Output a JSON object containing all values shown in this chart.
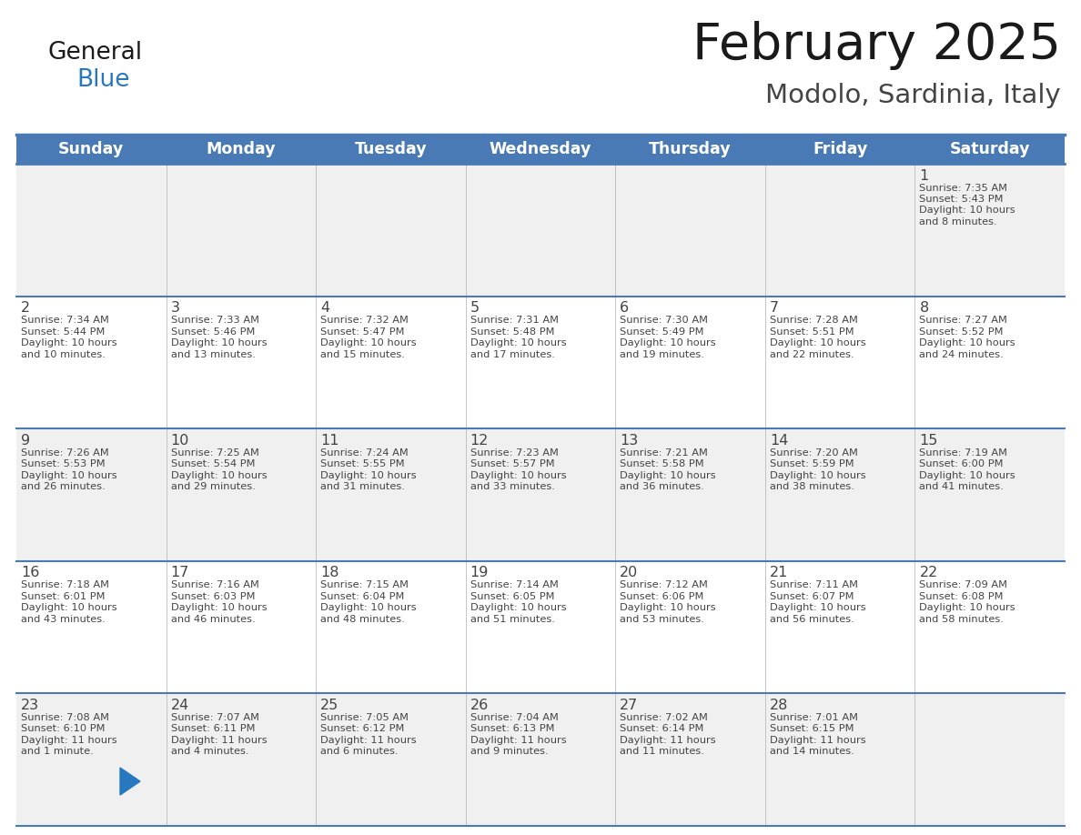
{
  "title": "February 2025",
  "subtitle": "Modolo, Sardinia, Italy",
  "header_bg": "#4a7ab5",
  "header_text_color": "#ffffff",
  "cell_bg_odd": "#f0f0f0",
  "cell_bg_even": "#ffffff",
  "border_color": "#4a7ab5",
  "text_color": "#444444",
  "day_headers": [
    "Sunday",
    "Monday",
    "Tuesday",
    "Wednesday",
    "Thursday",
    "Friday",
    "Saturday"
  ],
  "days": [
    {
      "day": 1,
      "col": 6,
      "row": 0,
      "sunrise": "7:35 AM",
      "sunset": "5:43 PM",
      "daylight": "10 hours and 8 minutes."
    },
    {
      "day": 2,
      "col": 0,
      "row": 1,
      "sunrise": "7:34 AM",
      "sunset": "5:44 PM",
      "daylight": "10 hours and 10 minutes."
    },
    {
      "day": 3,
      "col": 1,
      "row": 1,
      "sunrise": "7:33 AM",
      "sunset": "5:46 PM",
      "daylight": "10 hours and 13 minutes."
    },
    {
      "day": 4,
      "col": 2,
      "row": 1,
      "sunrise": "7:32 AM",
      "sunset": "5:47 PM",
      "daylight": "10 hours and 15 minutes."
    },
    {
      "day": 5,
      "col": 3,
      "row": 1,
      "sunrise": "7:31 AM",
      "sunset": "5:48 PM",
      "daylight": "10 hours and 17 minutes."
    },
    {
      "day": 6,
      "col": 4,
      "row": 1,
      "sunrise": "7:30 AM",
      "sunset": "5:49 PM",
      "daylight": "10 hours and 19 minutes."
    },
    {
      "day": 7,
      "col": 5,
      "row": 1,
      "sunrise": "7:28 AM",
      "sunset": "5:51 PM",
      "daylight": "10 hours and 22 minutes."
    },
    {
      "day": 8,
      "col": 6,
      "row": 1,
      "sunrise": "7:27 AM",
      "sunset": "5:52 PM",
      "daylight": "10 hours and 24 minutes."
    },
    {
      "day": 9,
      "col": 0,
      "row": 2,
      "sunrise": "7:26 AM",
      "sunset": "5:53 PM",
      "daylight": "10 hours and 26 minutes."
    },
    {
      "day": 10,
      "col": 1,
      "row": 2,
      "sunrise": "7:25 AM",
      "sunset": "5:54 PM",
      "daylight": "10 hours and 29 minutes."
    },
    {
      "day": 11,
      "col": 2,
      "row": 2,
      "sunrise": "7:24 AM",
      "sunset": "5:55 PM",
      "daylight": "10 hours and 31 minutes."
    },
    {
      "day": 12,
      "col": 3,
      "row": 2,
      "sunrise": "7:23 AM",
      "sunset": "5:57 PM",
      "daylight": "10 hours and 33 minutes."
    },
    {
      "day": 13,
      "col": 4,
      "row": 2,
      "sunrise": "7:21 AM",
      "sunset": "5:58 PM",
      "daylight": "10 hours and 36 minutes."
    },
    {
      "day": 14,
      "col": 5,
      "row": 2,
      "sunrise": "7:20 AM",
      "sunset": "5:59 PM",
      "daylight": "10 hours and 38 minutes."
    },
    {
      "day": 15,
      "col": 6,
      "row": 2,
      "sunrise": "7:19 AM",
      "sunset": "6:00 PM",
      "daylight": "10 hours and 41 minutes."
    },
    {
      "day": 16,
      "col": 0,
      "row": 3,
      "sunrise": "7:18 AM",
      "sunset": "6:01 PM",
      "daylight": "10 hours and 43 minutes."
    },
    {
      "day": 17,
      "col": 1,
      "row": 3,
      "sunrise": "7:16 AM",
      "sunset": "6:03 PM",
      "daylight": "10 hours and 46 minutes."
    },
    {
      "day": 18,
      "col": 2,
      "row": 3,
      "sunrise": "7:15 AM",
      "sunset": "6:04 PM",
      "daylight": "10 hours and 48 minutes."
    },
    {
      "day": 19,
      "col": 3,
      "row": 3,
      "sunrise": "7:14 AM",
      "sunset": "6:05 PM",
      "daylight": "10 hours and 51 minutes."
    },
    {
      "day": 20,
      "col": 4,
      "row": 3,
      "sunrise": "7:12 AM",
      "sunset": "6:06 PM",
      "daylight": "10 hours and 53 minutes."
    },
    {
      "day": 21,
      "col": 5,
      "row": 3,
      "sunrise": "7:11 AM",
      "sunset": "6:07 PM",
      "daylight": "10 hours and 56 minutes."
    },
    {
      "day": 22,
      "col": 6,
      "row": 3,
      "sunrise": "7:09 AM",
      "sunset": "6:08 PM",
      "daylight": "10 hours and 58 minutes."
    },
    {
      "day": 23,
      "col": 0,
      "row": 4,
      "sunrise": "7:08 AM",
      "sunset": "6:10 PM",
      "daylight": "11 hours and 1 minute."
    },
    {
      "day": 24,
      "col": 1,
      "row": 4,
      "sunrise": "7:07 AM",
      "sunset": "6:11 PM",
      "daylight": "11 hours and 4 minutes."
    },
    {
      "day": 25,
      "col": 2,
      "row": 4,
      "sunrise": "7:05 AM",
      "sunset": "6:12 PM",
      "daylight": "11 hours and 6 minutes."
    },
    {
      "day": 26,
      "col": 3,
      "row": 4,
      "sunrise": "7:04 AM",
      "sunset": "6:13 PM",
      "daylight": "11 hours and 9 minutes."
    },
    {
      "day": 27,
      "col": 4,
      "row": 4,
      "sunrise": "7:02 AM",
      "sunset": "6:14 PM",
      "daylight": "11 hours and 11 minutes."
    },
    {
      "day": 28,
      "col": 5,
      "row": 4,
      "sunrise": "7:01 AM",
      "sunset": "6:15 PM",
      "daylight": "11 hours and 14 minutes."
    }
  ],
  "logo_general_color": "#1a1a1a",
  "logo_blue_color": "#2878c0",
  "logo_triangle_color": "#2878c0",
  "title_color": "#1a1a1a",
  "subtitle_color": "#444444",
  "fig_width": 11.88,
  "fig_height": 9.18,
  "dpi": 100
}
